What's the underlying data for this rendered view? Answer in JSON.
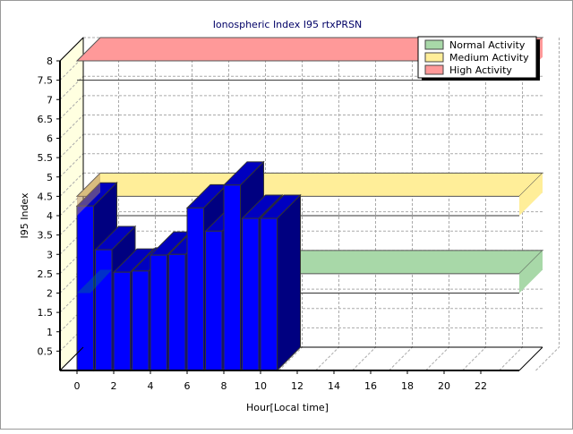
{
  "chart_data": {
    "type": "bar",
    "title": "Ionospheric Index I95 rtxPRSN",
    "xlabel": "Hour[Local time]",
    "ylabel": "I95 Index",
    "x": [
      0,
      1,
      2,
      3,
      4,
      5,
      6,
      7,
      8,
      9,
      10
    ],
    "values": [
      4.25,
      3.12,
      2.54,
      2.57,
      2.98,
      3.0,
      4.2,
      3.6,
      4.79,
      3.93,
      3.93
    ],
    "xlim": [
      0,
      26
    ],
    "ylim": [
      0,
      8
    ],
    "x_ticks": [
      "0",
      "2",
      "4",
      "6",
      "8",
      "10",
      "12",
      "14",
      "16",
      "18",
      "20",
      "22"
    ],
    "y_ticks": [
      "0.5",
      "1",
      "1.5",
      "2",
      "2.5",
      "3",
      "3.5",
      "4",
      "4.5",
      "5",
      "5.5",
      "6",
      "6.5",
      "7",
      "7.5",
      "8"
    ],
    "bands": [
      {
        "name": "Normal Activity",
        "from": 2,
        "to": 2.5,
        "color": "#a8d8a8"
      },
      {
        "name": "Medium Activity",
        "from": 4,
        "to": 4.5,
        "color": "#ffee99"
      },
      {
        "name": "High Activity",
        "from": 7.5,
        "to": 8,
        "color": "#ff9999"
      }
    ],
    "bar_color": "#0000ff",
    "legend_position": "top-right",
    "grid": true
  }
}
